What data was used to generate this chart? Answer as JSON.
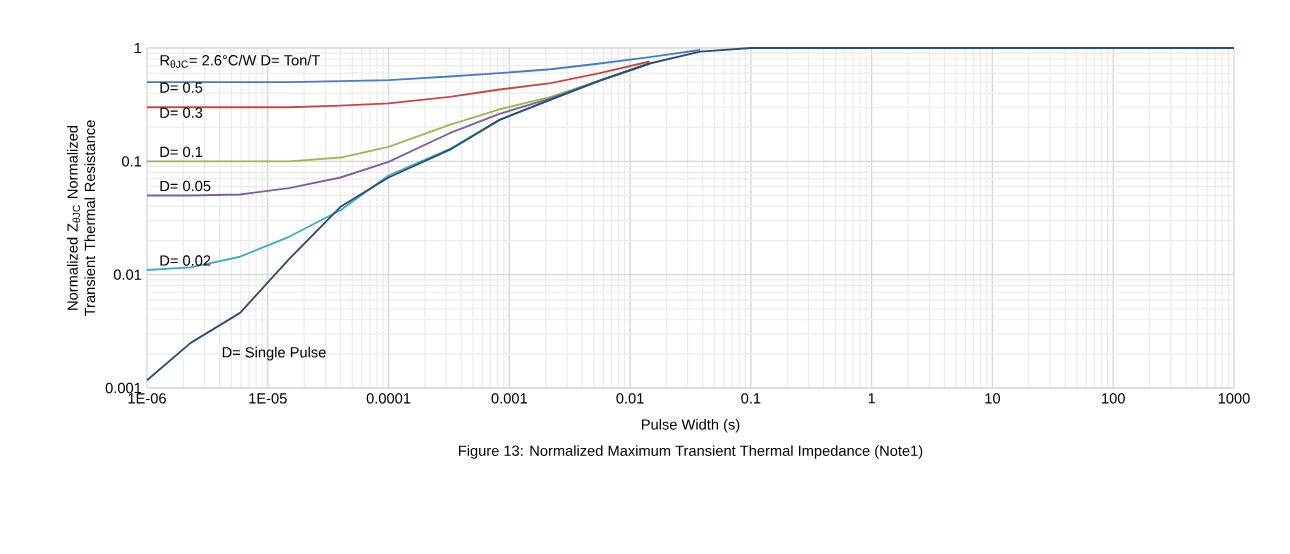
{
  "chart_data": {
    "type": "line",
    "xlabel": "Pulse Width (s)",
    "ylabel": "Normalized Z$_{θJC}$ Normalized Transient Thermal Resistance",
    "x": [
      1e-06,
      2.3e-06,
      5.9e-06,
      1.5e-05,
      4e-05,
      0.0001,
      0.00032,
      0.00083,
      0.0022,
      0.0056,
      0.0145,
      0.038,
      0.1,
      1000
    ],
    "series": [
      {
        "name": "D= 0.5",
        "color": "#4a7ebb",
        "values": [
          0.5,
          0.5,
          0.5,
          0.5,
          0.51,
          0.52,
          0.56,
          0.6,
          0.65,
          0.73,
          0.83,
          0.96,
          null,
          null
        ]
      },
      {
        "name": "D= 0.3",
        "color": "#be4b48",
        "values": [
          0.3,
          0.3,
          0.3,
          0.3,
          0.31,
          0.325,
          0.37,
          0.43,
          0.49,
          0.6,
          0.76,
          null,
          null,
          null
        ]
      },
      {
        "name": "D= 0.1",
        "color": "#98b954",
        "values": [
          0.1,
          0.1,
          0.1,
          0.1,
          0.108,
          0.134,
          0.21,
          0.288,
          0.37,
          0.515,
          0.73,
          null,
          null,
          null
        ]
      },
      {
        "name": "D= 0.05",
        "color": "#7d60a0",
        "values": [
          0.05,
          0.05,
          0.051,
          0.058,
          0.072,
          0.099,
          0.177,
          0.262,
          0.36,
          0.515,
          0.73,
          null,
          null,
          null
        ]
      },
      {
        "name": "D= 0.02",
        "color": "#46aac5",
        "values": [
          0.011,
          0.0116,
          0.0144,
          0.0216,
          0.037,
          0.075,
          0.128,
          0.232,
          0.35,
          0.515,
          0.73,
          null,
          null,
          null
        ]
      },
      {
        "name": "D= Single Pulse",
        "color": "#2c4d75",
        "values": [
          0.00117,
          0.0025,
          0.0046,
          0.0137,
          0.0397,
          0.072,
          0.126,
          0.232,
          0.35,
          0.515,
          0.73,
          0.93,
          1,
          1
        ]
      }
    ],
    "xlim": [
      1e-06,
      1000
    ],
    "ylim": [
      0.001,
      1
    ],
    "xticks": [
      {
        "value": 1e-06,
        "label": "1E-06"
      },
      {
        "value": 1e-05,
        "label": "1E-05"
      },
      0.0001,
      0.001,
      0.01,
      0.1,
      1,
      10,
      100,
      1000
    ],
    "yticks": [
      0.001,
      0.01,
      0.1,
      1
    ],
    "log": "xy",
    "grid": true,
    "line_style": "solid",
    "annotations": [
      "R$_{θJC}$= 2.6°C/W   D= Ton/T",
      "Figure 13: Normalized Maximum Transient Thermal Impedance (Note1)"
    ]
  }
}
